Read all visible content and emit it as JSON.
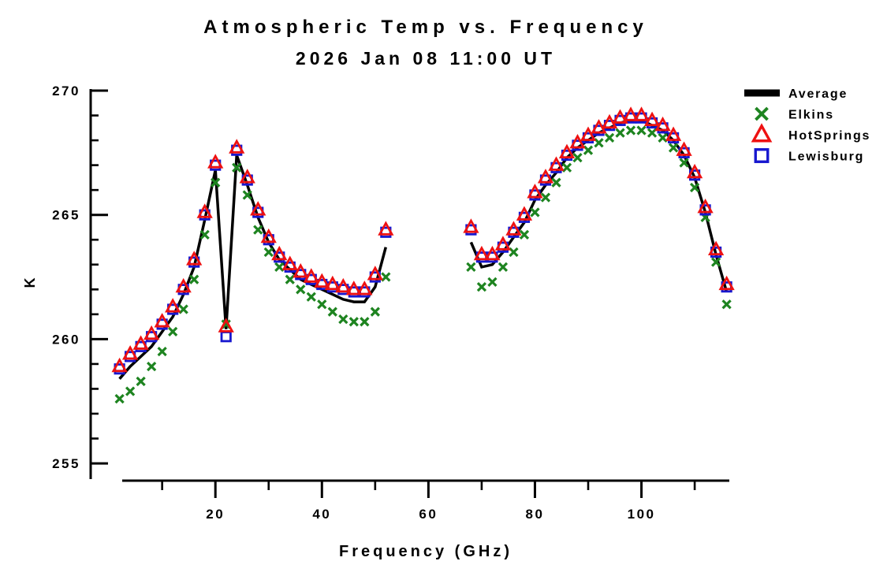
{
  "chart_data": {
    "type": "line",
    "title": "Atmospheric Temp vs. Frequency",
    "subtitle": "2026 Jan 08 11:00 UT",
    "xlabel": "Frequency (GHz)",
    "ylabel": "K",
    "xlim": [
      2.5,
      116.5
    ],
    "ylim": [
      254.4,
      270
    ],
    "x_ticks_labeled": [
      20,
      40,
      60,
      80,
      100
    ],
    "x_ticks_all": [
      10,
      20,
      30,
      40,
      50,
      60,
      70,
      80,
      90,
      100,
      110
    ],
    "y_ticks_labeled": [
      255,
      260,
      265,
      270
    ],
    "y_ticks_all": [
      255,
      256,
      257,
      258,
      259,
      260,
      261,
      262,
      263,
      264,
      265,
      266,
      267,
      268,
      269,
      270
    ],
    "grid": false,
    "legend_position": "top-right-outside",
    "data_gap_ghz": [
      52,
      68
    ],
    "x": [
      2,
      4,
      6,
      8,
      10,
      12,
      14,
      16,
      18,
      20,
      22,
      24,
      26,
      28,
      30,
      32,
      34,
      36,
      38,
      40,
      42,
      44,
      46,
      48,
      50,
      52,
      68,
      70,
      72,
      74,
      76,
      78,
      80,
      82,
      84,
      86,
      88,
      90,
      92,
      94,
      96,
      98,
      100,
      102,
      104,
      106,
      108,
      110,
      112,
      114,
      116
    ],
    "series": [
      {
        "name": "Average",
        "marker": "line",
        "color": "#000000",
        "values": [
          258.4,
          258.9,
          259.3,
          259.7,
          260.3,
          260.9,
          261.8,
          262.9,
          264.8,
          266.8,
          260.4,
          267.4,
          266.2,
          264.9,
          263.9,
          263.2,
          262.8,
          262.4,
          262.2,
          262.0,
          261.8,
          261.6,
          261.5,
          261.5,
          262.1,
          263.7,
          263.9,
          262.9,
          263.0,
          263.5,
          264.1,
          264.7,
          265.6,
          266.2,
          266.7,
          267.3,
          267.7,
          268.0,
          268.3,
          268.5,
          268.7,
          268.8,
          268.8,
          268.6,
          268.4,
          268.0,
          267.4,
          266.5,
          265.1,
          263.4,
          261.9
        ]
      },
      {
        "name": "Elkins",
        "marker": "x",
        "color": "#1e8420",
        "values": [
          257.6,
          257.9,
          258.3,
          258.9,
          259.5,
          260.3,
          261.2,
          262.4,
          264.2,
          266.3,
          260.6,
          266.9,
          265.8,
          264.4,
          263.5,
          262.9,
          262.4,
          262.0,
          261.7,
          261.4,
          261.1,
          260.8,
          260.7,
          260.7,
          261.1,
          262.5,
          262.9,
          262.1,
          262.3,
          262.9,
          263.5,
          264.2,
          265.1,
          265.7,
          266.3,
          266.9,
          267.3,
          267.6,
          267.9,
          268.1,
          268.3,
          268.4,
          268.4,
          268.3,
          268.1,
          267.7,
          267.1,
          266.1,
          264.9,
          263.1,
          261.4
        ]
      },
      {
        "name": "HotSprings",
        "marker": "triangle",
        "color": "#ee1111",
        "values": [
          258.9,
          259.4,
          259.8,
          260.2,
          260.7,
          261.3,
          262.1,
          263.2,
          265.1,
          267.1,
          260.5,
          267.7,
          266.5,
          265.2,
          264.1,
          263.4,
          263.0,
          262.7,
          262.5,
          262.3,
          262.2,
          262.1,
          262.0,
          262.0,
          262.6,
          264.4,
          264.5,
          263.4,
          263.4,
          263.8,
          264.4,
          265.0,
          265.9,
          266.5,
          267.0,
          267.5,
          267.9,
          268.2,
          268.5,
          268.7,
          268.9,
          269.0,
          269.0,
          268.8,
          268.6,
          268.2,
          267.6,
          266.7,
          265.3,
          263.6,
          262.2
        ]
      },
      {
        "name": "Lewisburg",
        "marker": "square",
        "color": "#1717cf",
        "values": [
          258.8,
          259.3,
          259.7,
          260.1,
          260.6,
          261.2,
          262.0,
          263.1,
          265.0,
          267.0,
          260.1,
          267.6,
          266.4,
          265.1,
          264.0,
          263.3,
          262.9,
          262.6,
          262.4,
          262.2,
          262.1,
          262.0,
          261.9,
          261.9,
          262.5,
          264.3,
          264.4,
          263.3,
          263.3,
          263.7,
          264.3,
          264.9,
          265.8,
          266.4,
          266.9,
          267.4,
          267.8,
          268.1,
          268.4,
          268.6,
          268.8,
          268.9,
          268.9,
          268.7,
          268.5,
          268.1,
          267.5,
          266.6,
          265.2,
          263.5,
          262.1
        ]
      }
    ]
  }
}
